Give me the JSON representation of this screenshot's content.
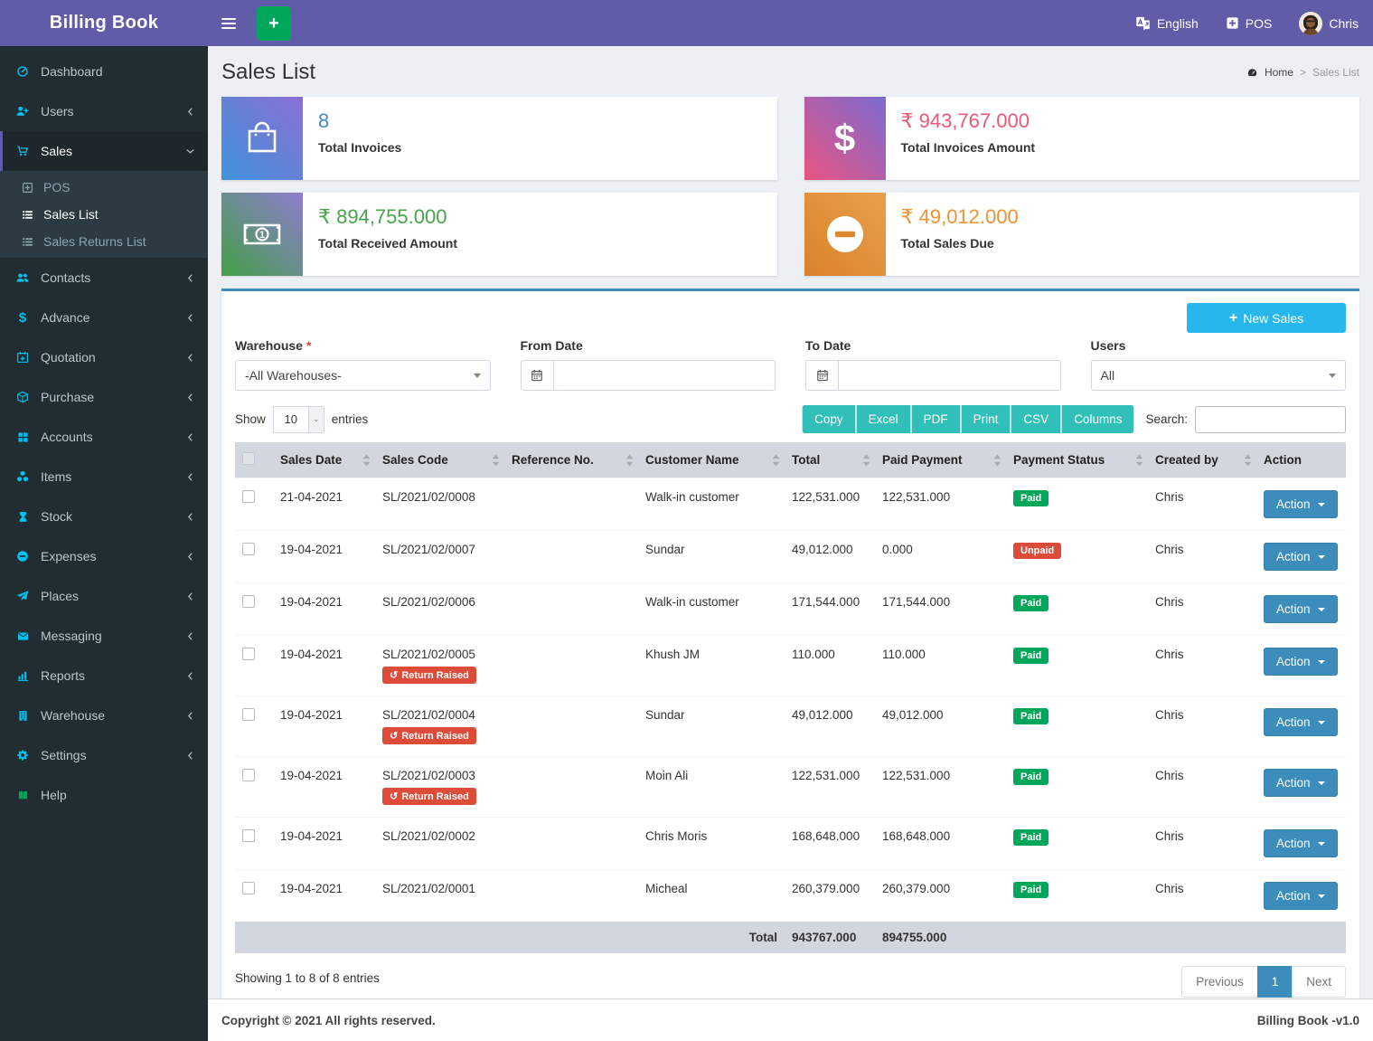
{
  "navbar": {
    "brand": "Billing Book",
    "language_label": "English",
    "pos_label": "POS",
    "user_name": "Chris"
  },
  "sidebar": {
    "items": [
      {
        "label": "Dashboard",
        "icon": "gauge",
        "arrow": false
      },
      {
        "label": "Users",
        "icon": "user-plus",
        "arrow": true
      },
      {
        "label": "Sales",
        "icon": "cart",
        "arrow": true,
        "active": true,
        "open": true,
        "submenu": [
          {
            "label": "POS",
            "icon": "plus-square",
            "active": false
          },
          {
            "label": "Sales List",
            "icon": "list",
            "active": true
          },
          {
            "label": "Sales Returns List",
            "icon": "list",
            "active": false
          }
        ]
      },
      {
        "label": "Contacts",
        "icon": "users",
        "arrow": true
      },
      {
        "label": "Advance",
        "icon": "dollar",
        "arrow": true
      },
      {
        "label": "Quotation",
        "icon": "calendar-plus",
        "arrow": true
      },
      {
        "label": "Purchase",
        "icon": "cube",
        "arrow": true
      },
      {
        "label": "Accounts",
        "icon": "grid",
        "arrow": true
      },
      {
        "label": "Items",
        "icon": "cubes",
        "arrow": true
      },
      {
        "label": "Stock",
        "icon": "hourglass",
        "arrow": true
      },
      {
        "label": "Expenses",
        "icon": "minus-circle",
        "arrow": true
      },
      {
        "label": "Places",
        "icon": "paper-plane",
        "arrow": true
      },
      {
        "label": "Messaging",
        "icon": "envelope",
        "arrow": true
      },
      {
        "label": "Reports",
        "icon": "bar-chart",
        "arrow": true
      },
      {
        "label": "Warehouse",
        "icon": "building",
        "arrow": true
      },
      {
        "label": "Settings",
        "icon": "gears",
        "arrow": true
      },
      {
        "label": "Help",
        "icon": "book",
        "icon_color": "#00a65a",
        "arrow": false
      }
    ]
  },
  "page": {
    "title": "Sales List",
    "breadcrumb": {
      "home": "Home",
      "separator": ">",
      "current": "Sales List"
    }
  },
  "stats": [
    {
      "value": "8",
      "label": "Total Invoices",
      "value_color": "#418bca",
      "icon": "shopping-bag"
    },
    {
      "value": "₹ 943,767.000",
      "label": "Total Invoices Amount",
      "value_color": "#ec5878",
      "icon": "dollar"
    },
    {
      "value": "₹ 894,755.000",
      "label": "Total Received Amount",
      "value_color": "#47a44b",
      "icon": "banknote"
    },
    {
      "value": "₹ 49,012.000",
      "label": "Total Sales Due",
      "value_color": "#ef9234",
      "icon": "minus-circle-card"
    }
  ],
  "actions": {
    "new_sales_label": "New Sales"
  },
  "filters": {
    "warehouse": {
      "label": "Warehouse",
      "required_mark": "*",
      "value": "-All Warehouses-"
    },
    "from_date": {
      "label": "From Date",
      "value": ""
    },
    "to_date": {
      "label": "To Date",
      "value": ""
    },
    "users": {
      "label": "Users",
      "value": "All"
    }
  },
  "toolbar": {
    "show_label": "Show",
    "entries_value": "10",
    "entries_label": "entries",
    "export_buttons": [
      "Copy",
      "Excel",
      "PDF",
      "Print",
      "CSV",
      "Columns"
    ],
    "search_label": "Search:",
    "search_value": ""
  },
  "table": {
    "columns": [
      {
        "label": "",
        "sortable": false,
        "name": "select"
      },
      {
        "label": "Sales Date",
        "sortable": true
      },
      {
        "label": "Sales Code",
        "sortable": true
      },
      {
        "label": "Reference No.",
        "sortable": true
      },
      {
        "label": "Customer Name",
        "sortable": true
      },
      {
        "label": "Total",
        "sortable": true
      },
      {
        "label": "Paid Payment",
        "sortable": true
      },
      {
        "label": "Payment Status",
        "sortable": true
      },
      {
        "label": "Created by",
        "sortable": true
      },
      {
        "label": "Action",
        "sortable": false
      }
    ],
    "return_badge_label": "Return Raised",
    "action_label": "Action",
    "rows": [
      {
        "date": "21-04-2021",
        "code": "SL/2021/02/0008",
        "return_raised": false,
        "reference": "",
        "customer": "Walk-in customer",
        "total": "122,531.000",
        "paid": "122,531.000",
        "status": "Paid",
        "created_by": "Chris"
      },
      {
        "date": "19-04-2021",
        "code": "SL/2021/02/0007",
        "return_raised": false,
        "reference": "",
        "customer": "Sundar",
        "total": "49,012.000",
        "paid": "0.000",
        "status": "Unpaid",
        "created_by": "Chris"
      },
      {
        "date": "19-04-2021",
        "code": "SL/2021/02/0006",
        "return_raised": false,
        "reference": "",
        "customer": "Walk-in customer",
        "total": "171,544.000",
        "paid": "171,544.000",
        "status": "Paid",
        "created_by": "Chris"
      },
      {
        "date": "19-04-2021",
        "code": "SL/2021/02/0005",
        "return_raised": true,
        "reference": "",
        "customer": "Khush JM",
        "total": "110.000",
        "paid": "110.000",
        "status": "Paid",
        "created_by": "Chris"
      },
      {
        "date": "19-04-2021",
        "code": "SL/2021/02/0004",
        "return_raised": true,
        "reference": "",
        "customer": "Sundar",
        "total": "49,012.000",
        "paid": "49,012.000",
        "status": "Paid",
        "created_by": "Chris"
      },
      {
        "date": "19-04-2021",
        "code": "SL/2021/02/0003",
        "return_raised": true,
        "reference": "",
        "customer": "Moin Ali",
        "total": "122,531.000",
        "paid": "122,531.000",
        "status": "Paid",
        "created_by": "Chris"
      },
      {
        "date": "19-04-2021",
        "code": "SL/2021/02/0002",
        "return_raised": false,
        "reference": "",
        "customer": "Chris Moris",
        "total": "168,648.000",
        "paid": "168,648.000",
        "status": "Paid",
        "created_by": "Chris"
      },
      {
        "date": "19-04-2021",
        "code": "SL/2021/02/0001",
        "return_raised": false,
        "reference": "",
        "customer": "Micheal",
        "total": "260,379.000",
        "paid": "260,379.000",
        "status": "Paid",
        "created_by": "Chris"
      }
    ],
    "total_row": {
      "label": "Total",
      "total": "943767.000",
      "paid": "894755.000"
    }
  },
  "summary": "Showing 1 to 8 of 8 entries",
  "pagination": {
    "previous": "Previous",
    "page": "1",
    "next": "Next"
  },
  "footer": {
    "left": "Copyright © 2021 All rights reserved.",
    "right": "Billing Book -v1.0"
  },
  "colors": {
    "navbar": "#605ca8",
    "sidebar": "#222d32",
    "accent": "#3c8dbc",
    "success": "#00a65a",
    "danger": "#dd4b39",
    "info": "#28b7ec",
    "export": "#31c0b9",
    "icon-cyan": "#00c0ef",
    "table-head": "#d2d6de",
    "page-bg": "#ecf0f5"
  }
}
